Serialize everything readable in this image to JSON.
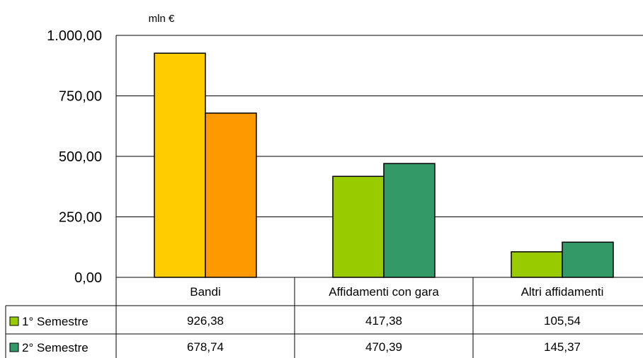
{
  "chart_data": {
    "type": "bar",
    "unit_label": "mln €",
    "categories": [
      "Bandi",
      "Affidamenti con gara",
      "Altri affidamenti"
    ],
    "yticks": [
      "1.000,00",
      "750,00",
      "500,00",
      "250,00",
      "0,00"
    ],
    "ytick_values": [
      1000,
      750,
      500,
      250,
      0
    ],
    "ylim": [
      0,
      1000
    ],
    "grid": true,
    "legend": "table-left",
    "series": [
      {
        "name": "1° Semestre",
        "values": [
          926.38,
          417.38,
          105.54
        ],
        "display": [
          "926,38",
          "417,38",
          "105,54"
        ]
      },
      {
        "name": "2° Semestre",
        "values": [
          678.74,
          470.39,
          145.37
        ],
        "display": [
          "678,74",
          "470,39",
          "145,37"
        ]
      }
    ],
    "bar_colors": [
      [
        "#ffcc00",
        "#99cc00",
        "#99cc00"
      ],
      [
        "#ff9900",
        "#339966",
        "#339966"
      ]
    ],
    "legend_colors": [
      "#99cc00",
      "#339966"
    ]
  }
}
